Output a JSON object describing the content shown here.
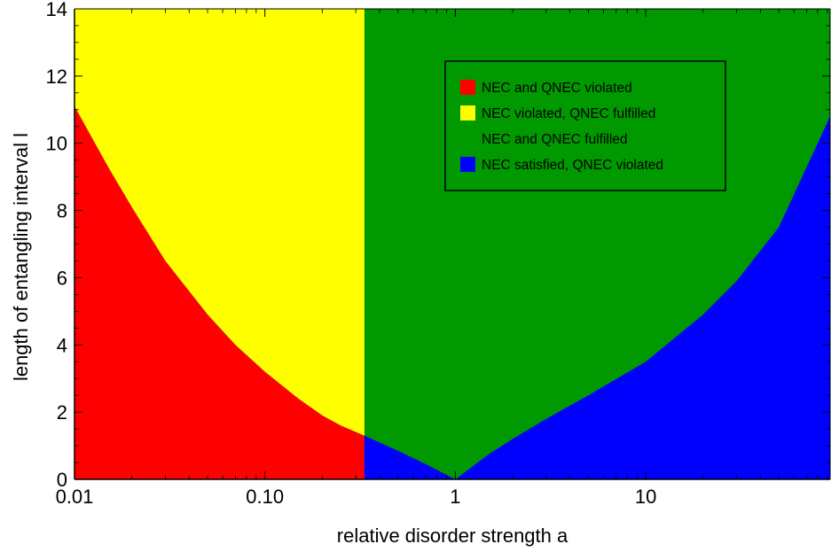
{
  "chart_data": {
    "type": "area",
    "xlabel": "relative disorder strength a",
    "ylabel": "length of entangling interval l",
    "x_scale": "log",
    "xlim": [
      0.01,
      93
    ],
    "ylim": [
      0,
      14
    ],
    "x_ticks": [
      {
        "value": 0.01,
        "label": "0.01"
      },
      {
        "value": 0.1,
        "label": "0.10"
      },
      {
        "value": 1,
        "label": "1"
      },
      {
        "value": 10,
        "label": "10"
      }
    ],
    "y_ticks": [
      {
        "value": 0,
        "label": "0"
      },
      {
        "value": 2,
        "label": "2"
      },
      {
        "value": 4,
        "label": "4"
      },
      {
        "value": 6,
        "label": "6"
      },
      {
        "value": 8,
        "label": "8"
      },
      {
        "value": 10,
        "label": "10"
      },
      {
        "value": 12,
        "label": "12"
      },
      {
        "value": 14,
        "label": "14"
      }
    ],
    "vertical_boundary_a": 0.333,
    "boundary_curves": {
      "left": {
        "x": [
          0.01,
          0.015,
          0.02,
          0.03,
          0.05,
          0.07,
          0.1,
          0.15,
          0.2,
          0.25,
          0.333
        ],
        "y": [
          11.1,
          9.3,
          8.1,
          6.5,
          4.9,
          4.0,
          3.2,
          2.4,
          1.9,
          1.6,
          1.3
        ]
      },
      "lower": {
        "x": [
          0.333,
          0.5,
          0.7,
          1.0
        ],
        "y": [
          1.3,
          0.85,
          0.45,
          0.0
        ]
      },
      "right": {
        "x": [
          1.0,
          1.5,
          2,
          3,
          5,
          10,
          20,
          30,
          50,
          93
        ],
        "y": [
          0.0,
          0.75,
          1.2,
          1.8,
          2.5,
          3.5,
          4.9,
          5.9,
          7.5,
          10.8
        ]
      }
    },
    "regions": [
      {
        "name": "NEC and QNEC violated",
        "color": "#ff0000"
      },
      {
        "name": "NEC violated, QNEC fulfilled",
        "color": "#ffff00"
      },
      {
        "name": "NEC and QNEC fulfilled",
        "color": "#009900"
      },
      {
        "name": "NEC satisfied, QNEC violated",
        "color": "#0000ff"
      }
    ],
    "legend_position": "top-right",
    "grid": false
  }
}
